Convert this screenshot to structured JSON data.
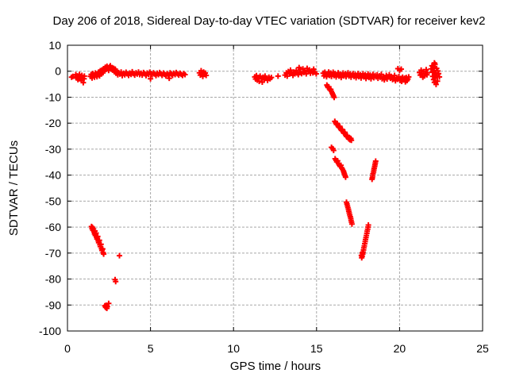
{
  "page": {
    "background": "#ffffff"
  },
  "chart_data": {
    "type": "scatter",
    "title": "Day 206 of 2018, Sidereal Day-to-day VTEC variation (SDTVAR) for receiver kev2",
    "xlabel": "GPS time / hours",
    "ylabel": "SDTVAR / TECUs",
    "xlim": [
      0,
      25
    ],
    "ylim": [
      -100,
      10
    ],
    "xticks": [
      0,
      5,
      10,
      15,
      20,
      25
    ],
    "yticks": [
      -100,
      -90,
      -80,
      -70,
      -60,
      -50,
      -40,
      -30,
      -20,
      -10,
      0,
      10
    ],
    "grid": true,
    "grid_color": "#a8a8a8",
    "axis_color": "#000000",
    "legend_position": "none",
    "marker": {
      "shape": "plus",
      "color": "#ff0000",
      "size": 7,
      "stroke_width": 2
    },
    "series_name": "SDTVAR",
    "points": [
      [
        0.25,
        -2.3
      ],
      [
        0.33,
        -2.0
      ],
      [
        0.5,
        -1.3
      ],
      [
        0.55,
        -2.6
      ],
      [
        0.6,
        -1.8
      ],
      [
        0.63,
        -3.2
      ],
      [
        0.68,
        -2.1
      ],
      [
        0.72,
        -1.2
      ],
      [
        0.75,
        -2.9
      ],
      [
        0.8,
        -2.0
      ],
      [
        0.83,
        -3.6
      ],
      [
        0.87,
        -1.6
      ],
      [
        0.9,
        -2.5
      ],
      [
        0.95,
        -4.4
      ],
      [
        1.0,
        -2.9
      ],
      [
        1.02,
        -1.9
      ],
      [
        1.38,
        -2.0
      ],
      [
        1.43,
        -1.2
      ],
      [
        1.48,
        -2.6
      ],
      [
        1.53,
        -0.9
      ],
      [
        1.58,
        -1.7
      ],
      [
        1.63,
        -2.3
      ],
      [
        1.68,
        -0.7
      ],
      [
        1.73,
        -1.5
      ],
      [
        1.78,
        -2.1
      ],
      [
        1.83,
        -1.0
      ],
      [
        1.88,
        -0.3
      ],
      [
        1.93,
        -1.8
      ],
      [
        1.98,
        0.2
      ],
      [
        2.03,
        -1.1
      ],
      [
        2.08,
        0.5
      ],
      [
        2.13,
        -0.6
      ],
      [
        2.18,
        1.0
      ],
      [
        2.23,
        0.1
      ],
      [
        2.28,
        1.5
      ],
      [
        2.33,
        0.7
      ],
      [
        2.38,
        1.9
      ],
      [
        2.43,
        1.1
      ],
      [
        2.48,
        0.3
      ],
      [
        2.53,
        1.6
      ],
      [
        2.58,
        2.1
      ],
      [
        2.63,
        0.8
      ],
      [
        2.68,
        1.4
      ],
      [
        2.73,
        0.4
      ],
      [
        2.78,
        1.1
      ],
      [
        2.83,
        -0.2
      ],
      [
        2.88,
        0.8
      ],
      [
        2.93,
        -0.8
      ],
      [
        2.98,
        0.0
      ],
      [
        3.03,
        -1.4
      ],
      [
        3.08,
        -0.5
      ],
      [
        3.15,
        -1.1
      ],
      [
        3.23,
        -0.3
      ],
      [
        3.3,
        -1.7
      ],
      [
        3.38,
        -0.8
      ],
      [
        3.45,
        -1.4
      ],
      [
        3.53,
        -0.4
      ],
      [
        3.6,
        -1.0
      ],
      [
        3.68,
        -1.6
      ],
      [
        3.75,
        -0.7
      ],
      [
        3.83,
        -1.2
      ],
      [
        3.9,
        -0.2
      ],
      [
        3.98,
        -0.9
      ],
      [
        4.05,
        -1.5
      ],
      [
        4.13,
        -0.6
      ],
      [
        4.2,
        -1.1
      ],
      [
        4.28,
        -0.3
      ],
      [
        4.35,
        -1.3
      ],
      [
        4.43,
        -0.8
      ],
      [
        4.5,
        -1.5
      ],
      [
        4.58,
        -0.5
      ],
      [
        4.65,
        -1.0
      ],
      [
        4.73,
        -1.7
      ],
      [
        4.8,
        -0.7
      ],
      [
        4.88,
        -1.2
      ],
      [
        4.95,
        -0.4
      ],
      [
        5.0,
        -2.9
      ],
      [
        5.03,
        -0.9
      ],
      [
        5.1,
        -1.4
      ],
      [
        5.18,
        -0.6
      ],
      [
        5.25,
        -1.1
      ],
      [
        5.33,
        -1.7
      ],
      [
        5.4,
        -0.8
      ],
      [
        5.48,
        -1.3
      ],
      [
        5.55,
        -0.5
      ],
      [
        5.63,
        -1.0
      ],
      [
        5.7,
        -1.6
      ],
      [
        5.78,
        -0.7
      ],
      [
        5.85,
        -1.2
      ],
      [
        5.93,
        -1.8
      ],
      [
        6.0,
        -0.9
      ],
      [
        6.08,
        -1.4
      ],
      [
        6.13,
        -2.7
      ],
      [
        6.18,
        -0.6
      ],
      [
        6.25,
        -1.1
      ],
      [
        6.33,
        -1.6
      ],
      [
        6.4,
        -0.8
      ],
      [
        6.48,
        -1.3
      ],
      [
        6.55,
        -0.5
      ],
      [
        6.63,
        -1.0
      ],
      [
        6.7,
        -1.5
      ],
      [
        6.78,
        -0.8
      ],
      [
        6.85,
        -1.2
      ],
      [
        6.93,
        -1.6
      ],
      [
        7.0,
        -0.9
      ],
      [
        7.08,
        -1.3
      ],
      [
        7.95,
        -0.6
      ],
      [
        8.0,
        -1.5
      ],
      [
        8.05,
        0.2
      ],
      [
        8.1,
        -0.9
      ],
      [
        8.15,
        -2.0
      ],
      [
        8.2,
        -0.3
      ],
      [
        8.25,
        -1.2
      ],
      [
        8.3,
        -0.7
      ],
      [
        8.35,
        -1.6
      ],
      [
        11.28,
        -2.2
      ],
      [
        11.33,
        -3.0
      ],
      [
        11.38,
        -1.7
      ],
      [
        11.43,
        -3.4
      ],
      [
        11.5,
        -2.4
      ],
      [
        11.55,
        -3.9
      ],
      [
        11.6,
        -1.9
      ],
      [
        11.68,
        -2.8
      ],
      [
        11.73,
        -4.2
      ],
      [
        11.78,
        -2.3
      ],
      [
        11.85,
        -3.2
      ],
      [
        11.9,
        -1.9
      ],
      [
        11.98,
        -2.7
      ],
      [
        12.05,
        -3.5
      ],
      [
        12.13,
        -2.3
      ],
      [
        12.2,
        -2.9
      ],
      [
        12.28,
        -2.4
      ],
      [
        12.68,
        -1.9
      ],
      [
        13.1,
        -1.5
      ],
      [
        13.18,
        -0.6
      ],
      [
        13.23,
        -1.9
      ],
      [
        13.3,
        -0.1
      ],
      [
        13.38,
        -1.1
      ],
      [
        13.43,
        0.4
      ],
      [
        13.5,
        -0.8
      ],
      [
        13.58,
        -1.6
      ],
      [
        13.63,
        -0.3
      ],
      [
        13.7,
        -1.0
      ],
      [
        13.78,
        0.3
      ],
      [
        13.83,
        -0.7
      ],
      [
        13.9,
        -1.3
      ],
      [
        13.95,
        1.4
      ],
      [
        13.98,
        -0.4
      ],
      [
        14.03,
        0.7
      ],
      [
        14.1,
        -0.9
      ],
      [
        14.18,
        0.9
      ],
      [
        14.23,
        -0.5
      ],
      [
        14.3,
        0.3
      ],
      [
        14.38,
        -1.0
      ],
      [
        14.43,
        1.1
      ],
      [
        14.5,
        -0.2
      ],
      [
        14.58,
        0.5
      ],
      [
        14.63,
        -0.8
      ],
      [
        14.7,
        0.1
      ],
      [
        14.78,
        -0.6
      ],
      [
        14.83,
        0.8
      ],
      [
        14.9,
        -0.3
      ],
      [
        14.98,
        -1.0
      ],
      [
        15.4,
        -0.8
      ],
      [
        15.45,
        -1.8
      ],
      [
        15.5,
        -0.4
      ],
      [
        15.55,
        -1.3
      ],
      [
        15.6,
        -2.1
      ],
      [
        15.68,
        -1.0
      ],
      [
        15.73,
        -0.3
      ],
      [
        15.78,
        -1.6
      ],
      [
        15.85,
        -0.7
      ],
      [
        15.9,
        -2.0
      ],
      [
        15.95,
        -1.2
      ],
      [
        16.0,
        -0.4
      ],
      [
        16.05,
        -1.7
      ],
      [
        16.13,
        -0.9
      ],
      [
        16.18,
        -2.2
      ],
      [
        16.25,
        -1.3
      ],
      [
        16.3,
        -0.6
      ],
      [
        16.35,
        -1.9
      ],
      [
        16.43,
        -1.1
      ],
      [
        16.48,
        -2.4
      ],
      [
        16.55,
        -1.4
      ],
      [
        16.6,
        -0.7
      ],
      [
        16.65,
        -1.8
      ],
      [
        16.73,
        -1.0
      ],
      [
        16.78,
        -2.1
      ],
      [
        16.85,
        -1.3
      ],
      [
        16.9,
        -0.6
      ],
      [
        16.95,
        -1.9
      ],
      [
        17.03,
        -1.1
      ],
      [
        17.08,
        -2.3
      ],
      [
        17.15,
        -1.5
      ],
      [
        17.2,
        -0.9
      ],
      [
        17.25,
        -2.0
      ],
      [
        17.33,
        -1.2
      ],
      [
        17.38,
        -2.5
      ],
      [
        17.45,
        -1.6
      ],
      [
        17.5,
        -0.9
      ],
      [
        17.55,
        -2.1
      ],
      [
        17.63,
        -1.3
      ],
      [
        17.68,
        -2.6
      ],
      [
        17.75,
        -1.7
      ],
      [
        17.8,
        -1.0
      ],
      [
        17.85,
        -2.2
      ],
      [
        17.93,
        -1.4
      ],
      [
        17.98,
        -2.8
      ],
      [
        18.05,
        -1.8
      ],
      [
        18.1,
        -1.1
      ],
      [
        18.15,
        -2.4
      ],
      [
        18.23,
        -1.5
      ],
      [
        18.28,
        -2.9
      ],
      [
        18.35,
        -1.9
      ],
      [
        18.4,
        -1.2
      ],
      [
        18.45,
        -2.5
      ],
      [
        18.53,
        -1.6
      ],
      [
        18.58,
        -2.2
      ],
      [
        18.65,
        -1.4
      ],
      [
        18.7,
        -2.7
      ],
      [
        18.78,
        -1.8
      ],
      [
        18.83,
        -2.3
      ],
      [
        18.9,
        -1.2
      ],
      [
        18.95,
        -2.9
      ],
      [
        19.03,
        -2.0
      ],
      [
        19.08,
        -3.3
      ],
      [
        19.15,
        -2.4
      ],
      [
        19.2,
        -1.6
      ],
      [
        19.25,
        -3.0
      ],
      [
        19.33,
        -2.2
      ],
      [
        19.38,
        -1.4
      ],
      [
        19.45,
        -2.7
      ],
      [
        19.5,
        -2.0
      ],
      [
        19.58,
        -3.2
      ],
      [
        19.63,
        -2.4
      ],
      [
        19.7,
        -1.6
      ],
      [
        19.75,
        -3.7
      ],
      [
        19.83,
        -2.7
      ],
      [
        19.88,
        -3.1
      ],
      [
        19.9,
        1.0
      ],
      [
        19.95,
        -2.1
      ],
      [
        20.0,
        0.3
      ],
      [
        20.03,
        -3.5
      ],
      [
        20.08,
        -2.8
      ],
      [
        20.1,
        0.8
      ],
      [
        20.13,
        -3.9
      ],
      [
        20.18,
        -2.3
      ],
      [
        20.25,
        -3.3
      ],
      [
        20.3,
        -2.7
      ],
      [
        20.35,
        -4.1
      ],
      [
        20.4,
        -2.4
      ],
      [
        20.45,
        -3.6
      ],
      [
        20.5,
        -3.0
      ],
      [
        20.55,
        -2.2
      ],
      [
        21.2,
        -0.5
      ],
      [
        21.25,
        -1.5
      ],
      [
        21.3,
        0.4
      ],
      [
        21.35,
        -0.9
      ],
      [
        21.4,
        -2.3
      ],
      [
        21.45,
        -0.1
      ],
      [
        21.5,
        -1.8
      ],
      [
        21.55,
        -1.0
      ],
      [
        21.6,
        0.6
      ],
      [
        21.65,
        -1.4
      ],
      [
        21.68,
        -0.6
      ],
      [
        21.9,
        0.9
      ],
      [
        21.95,
        2.1
      ],
      [
        21.98,
        -0.4
      ],
      [
        22.0,
        -2.0
      ],
      [
        22.03,
        1.4
      ],
      [
        22.05,
        -3.2
      ],
      [
        22.08,
        0.3
      ],
      [
        22.1,
        3.2
      ],
      [
        22.1,
        -1.3
      ],
      [
        22.1,
        -4.3
      ],
      [
        22.13,
        2.7
      ],
      [
        22.15,
        -2.5
      ],
      [
        22.18,
        -0.7
      ],
      [
        22.2,
        -5.1
      ],
      [
        22.23,
        1.1
      ],
      [
        22.25,
        -1.8
      ],
      [
        22.28,
        -3.8
      ],
      [
        22.3,
        0.1
      ],
      [
        22.35,
        -0.9
      ],
      [
        22.4,
        -2.2
      ],
      [
        1.45,
        -59.8
      ],
      [
        1.48,
        -60.6
      ],
      [
        1.5,
        -60.1
      ],
      [
        1.53,
        -61.3
      ],
      [
        1.57,
        -60.7
      ],
      [
        1.6,
        -61.9
      ],
      [
        1.63,
        -62.6
      ],
      [
        1.65,
        -61.5
      ],
      [
        1.68,
        -63.2
      ],
      [
        1.72,
        -62.3
      ],
      [
        1.75,
        -63.9
      ],
      [
        1.78,
        -64.6
      ],
      [
        1.82,
        -63.6
      ],
      [
        1.85,
        -65.3
      ],
      [
        1.88,
        -66.0
      ],
      [
        1.92,
        -65.1
      ],
      [
        1.95,
        -66.8
      ],
      [
        1.98,
        -67.5
      ],
      [
        2.02,
        -66.6
      ],
      [
        2.05,
        -68.3
      ],
      [
        2.08,
        -69.0
      ],
      [
        2.12,
        -68.4
      ],
      [
        2.15,
        -69.8
      ],
      [
        2.18,
        -70.4
      ],
      [
        3.13,
        -71.0
      ],
      [
        2.87,
        -80.2
      ],
      [
        2.9,
        -81.0
      ],
      [
        2.25,
        -90.3
      ],
      [
        2.3,
        -90.9
      ],
      [
        2.33,
        -90.1
      ],
      [
        2.37,
        -91.3
      ],
      [
        2.4,
        -90.6
      ],
      [
        2.48,
        -89.4
      ],
      [
        15.62,
        -5.3
      ],
      [
        15.66,
        -5.8
      ],
      [
        15.7,
        -6.3
      ],
      [
        15.74,
        -6.0
      ],
      [
        15.78,
        -6.8
      ],
      [
        15.82,
        -7.3
      ],
      [
        15.86,
        -7.0
      ],
      [
        15.9,
        -7.8
      ],
      [
        15.94,
        -8.4
      ],
      [
        15.98,
        -8.9
      ],
      [
        16.02,
        -9.5
      ],
      [
        16.06,
        -10.1
      ],
      [
        16.1,
        -19.3
      ],
      [
        16.15,
        -19.9
      ],
      [
        16.2,
        -20.5
      ],
      [
        16.25,
        -20.1
      ],
      [
        16.3,
        -21.0
      ],
      [
        16.35,
        -21.6
      ],
      [
        16.4,
        -21.2
      ],
      [
        16.45,
        -22.2
      ],
      [
        16.5,
        -22.8
      ],
      [
        16.55,
        -22.4
      ],
      [
        16.6,
        -23.3
      ],
      [
        16.65,
        -23.9
      ],
      [
        16.7,
        -23.5
      ],
      [
        16.75,
        -24.5
      ],
      [
        16.8,
        -25.1
      ],
      [
        16.85,
        -24.7
      ],
      [
        16.9,
        -25.5
      ],
      [
        16.95,
        -26.1
      ],
      [
        17.0,
        -25.7
      ],
      [
        17.02,
        -26.4
      ],
      [
        17.07,
        -25.9
      ],
      [
        17.1,
        -26.6
      ],
      [
        15.9,
        -29.3
      ],
      [
        15.98,
        -29.8
      ],
      [
        16.03,
        -30.5
      ],
      [
        16.12,
        -33.7
      ],
      [
        16.17,
        -34.3
      ],
      [
        16.22,
        -34.9
      ],
      [
        16.27,
        -34.5
      ],
      [
        16.32,
        -35.5
      ],
      [
        16.37,
        -36.1
      ],
      [
        16.42,
        -36.6
      ],
      [
        16.47,
        -36.2
      ],
      [
        16.52,
        -37.2
      ],
      [
        16.57,
        -37.8
      ],
      [
        16.62,
        -38.4
      ],
      [
        16.65,
        -39.0
      ],
      [
        16.68,
        -39.6
      ],
      [
        16.72,
        -40.2
      ],
      [
        16.75,
        -40.8
      ],
      [
        16.8,
        -50.4
      ],
      [
        16.83,
        -51.1
      ],
      [
        16.86,
        -51.8
      ],
      [
        16.89,
        -52.5
      ],
      [
        16.92,
        -53.2
      ],
      [
        16.94,
        -53.9
      ],
      [
        16.97,
        -54.6
      ],
      [
        17.0,
        -55.3
      ],
      [
        17.03,
        -56.0
      ],
      [
        17.06,
        -56.7
      ],
      [
        17.08,
        -57.4
      ],
      [
        17.11,
        -58.1
      ],
      [
        17.13,
        -58.8
      ],
      [
        18.12,
        -59.2
      ],
      [
        18.1,
        -60.0
      ],
      [
        18.08,
        -60.8
      ],
      [
        18.05,
        -61.6
      ],
      [
        18.03,
        -62.4
      ],
      [
        18.0,
        -63.2
      ],
      [
        17.98,
        -64.0
      ],
      [
        17.95,
        -64.8
      ],
      [
        17.93,
        -65.6
      ],
      [
        17.9,
        -66.4
      ],
      [
        17.88,
        -67.2
      ],
      [
        17.85,
        -68.0
      ],
      [
        17.83,
        -68.8
      ],
      [
        17.8,
        -69.6
      ],
      [
        17.78,
        -70.4
      ],
      [
        17.75,
        -71.2
      ],
      [
        17.72,
        -71.8
      ],
      [
        17.7,
        -70.9
      ],
      [
        17.76,
        -69.9
      ],
      [
        18.56,
        -34.6
      ],
      [
        18.54,
        -35.3
      ],
      [
        18.52,
        -36.0
      ],
      [
        18.5,
        -36.7
      ],
      [
        18.47,
        -37.4
      ],
      [
        18.45,
        -38.1
      ],
      [
        18.43,
        -38.8
      ],
      [
        18.4,
        -39.5
      ],
      [
        18.38,
        -40.3
      ],
      [
        18.36,
        -41.0
      ],
      [
        18.34,
        -41.6
      ]
    ]
  }
}
